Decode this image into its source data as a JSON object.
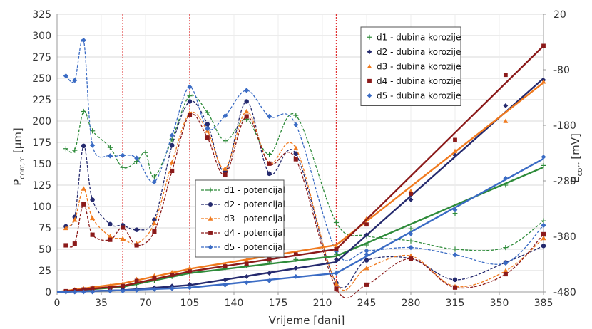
{
  "chart_data": {
    "type": "line",
    "xlabel": "Vrijeme [dani]",
    "ylabel_left": "P",
    "ylabel_left_sub": "corr,m",
    "ylabel_left_unit": "[µm]",
    "ylabel_right": "E",
    "ylabel_right_sub": "corr",
    "ylabel_right_unit": "[mV]",
    "x_ticks": [
      0,
      35,
      70,
      105,
      140,
      175,
      210,
      245,
      280,
      315,
      350,
      385
    ],
    "y_left_ticks": [
      0,
      25,
      50,
      75,
      100,
      125,
      150,
      175,
      200,
      225,
      250,
      275,
      300,
      325
    ],
    "y_right_ticks": [
      20,
      -80,
      -180,
      -280,
      -380,
      -480
    ],
    "xlim": [
      0,
      385
    ],
    "ylim_left": [
      0,
      325
    ],
    "ylim_right": [
      -480,
      20
    ],
    "vertical_markers": [
      52,
      105,
      221
    ],
    "legend_depth_position": "top-right",
    "legend_potential_position": "center",
    "depth_series": [
      {
        "name": "d1 - dubina korozije",
        "color": "#2e8b3a",
        "marker": "plus",
        "points": [
          [
            7,
            0
          ],
          [
            14,
            1
          ],
          [
            21,
            2
          ],
          [
            28,
            3
          ],
          [
            42,
            4
          ],
          [
            52,
            5
          ],
          [
            63,
            9
          ],
          [
            77,
            13
          ],
          [
            91,
            18
          ],
          [
            105,
            22
          ],
          [
            133,
            28
          ],
          [
            150,
            31
          ],
          [
            168,
            35
          ],
          [
            189,
            38
          ],
          [
            221,
            44
          ],
          [
            245,
            55
          ],
          [
            280,
            74
          ],
          [
            315,
            92
          ],
          [
            355,
            125
          ],
          [
            385,
            148
          ]
        ],
        "line": [
          [
            0,
            0
          ],
          [
            52,
            6
          ],
          [
            105,
            22
          ],
          [
            221,
            42
          ],
          [
            385,
            146
          ]
        ]
      },
      {
        "name": "d2 - dubina korozije",
        "color": "#252a6e",
        "marker": "diamond",
        "points": [
          [
            7,
            0
          ],
          [
            14,
            0
          ],
          [
            21,
            1
          ],
          [
            28,
            1
          ],
          [
            42,
            2
          ],
          [
            52,
            3
          ],
          [
            63,
            3
          ],
          [
            77,
            5
          ],
          [
            91,
            7
          ],
          [
            105,
            9
          ],
          [
            133,
            14
          ],
          [
            150,
            18
          ],
          [
            168,
            22
          ],
          [
            189,
            28
          ],
          [
            221,
            38
          ],
          [
            245,
            67
          ],
          [
            280,
            108
          ],
          [
            315,
            160
          ],
          [
            355,
            218
          ],
          [
            385,
            248
          ]
        ],
        "line": [
          [
            0,
            0
          ],
          [
            52,
            2
          ],
          [
            105,
            8
          ],
          [
            221,
            35
          ],
          [
            385,
            250
          ]
        ]
      },
      {
        "name": "d3 - dubina korozije",
        "color": "#f07a1e",
        "marker": "triangle",
        "points": [
          [
            7,
            1
          ],
          [
            14,
            3
          ],
          [
            21,
            4
          ],
          [
            28,
            5
          ],
          [
            42,
            7
          ],
          [
            52,
            9
          ],
          [
            63,
            15
          ],
          [
            77,
            19
          ],
          [
            91,
            23
          ],
          [
            105,
            28
          ],
          [
            133,
            32
          ],
          [
            150,
            37
          ],
          [
            168,
            40
          ],
          [
            189,
            45
          ],
          [
            221,
            54
          ],
          [
            245,
            86
          ],
          [
            280,
            118
          ],
          [
            315,
            165
          ],
          [
            355,
            200
          ],
          [
            385,
            246
          ]
        ],
        "line": [
          [
            0,
            0
          ],
          [
            52,
            10
          ],
          [
            105,
            27
          ],
          [
            221,
            55
          ],
          [
            385,
            245
          ]
        ]
      },
      {
        "name": "d4 - dubina korozije",
        "color": "#8b1a1a",
        "marker": "square",
        "points": [
          [
            7,
            1
          ],
          [
            14,
            2
          ],
          [
            21,
            3
          ],
          [
            28,
            4
          ],
          [
            42,
            5
          ],
          [
            52,
            7
          ],
          [
            63,
            13
          ],
          [
            77,
            16
          ],
          [
            91,
            20
          ],
          [
            105,
            24
          ],
          [
            133,
            30
          ],
          [
            150,
            33
          ],
          [
            168,
            38
          ],
          [
            189,
            44
          ],
          [
            221,
            50
          ],
          [
            245,
            79
          ],
          [
            280,
            115
          ],
          [
            315,
            178
          ],
          [
            355,
            254
          ],
          [
            385,
            288
          ]
        ],
        "line": [
          [
            0,
            0
          ],
          [
            52,
            7
          ],
          [
            105,
            24
          ],
          [
            221,
            50
          ],
          [
            385,
            288
          ]
        ]
      },
      {
        "name": "d5 - dubina korozije",
        "color": "#3a6bc4",
        "marker": "diamond",
        "points": [
          [
            7,
            0
          ],
          [
            14,
            0
          ],
          [
            21,
            0
          ],
          [
            28,
            0
          ],
          [
            42,
            1
          ],
          [
            52,
            1
          ],
          [
            63,
            2
          ],
          [
            77,
            3
          ],
          [
            91,
            4
          ],
          [
            105,
            5
          ],
          [
            133,
            8
          ],
          [
            150,
            11
          ],
          [
            168,
            13
          ],
          [
            189,
            18
          ],
          [
            221,
            22
          ],
          [
            245,
            44
          ],
          [
            280,
            68
          ],
          [
            315,
            96
          ],
          [
            355,
            133
          ],
          [
            385,
            158
          ]
        ],
        "line": [
          [
            0,
            0
          ],
          [
            52,
            2
          ],
          [
            105,
            5
          ],
          [
            221,
            22
          ],
          [
            385,
            156
          ]
        ]
      }
    ],
    "potential_series": [
      {
        "name": "d1 - potencijal",
        "color": "#2e8b3a",
        "marker": "plus",
        "points": [
          [
            7,
            -222
          ],
          [
            14,
            -225
          ],
          [
            21,
            -155
          ],
          [
            28,
            -190
          ],
          [
            42,
            -220
          ],
          [
            52,
            -256
          ],
          [
            63,
            -245
          ],
          [
            70,
            -229
          ],
          [
            77,
            -273
          ],
          [
            91,
            -205
          ],
          [
            105,
            -127
          ],
          [
            119,
            -157
          ],
          [
            133,
            -208
          ],
          [
            150,
            -169
          ],
          [
            168,
            -232
          ],
          [
            189,
            -162
          ],
          [
            221,
            -355
          ],
          [
            245,
            -379
          ],
          [
            280,
            -388
          ],
          [
            315,
            -403
          ],
          [
            355,
            -400
          ],
          [
            385,
            -352
          ]
        ]
      },
      {
        "name": "d2 - potencijal",
        "color": "#252a6e",
        "marker": "circle",
        "points": [
          [
            7,
            -362
          ],
          [
            14,
            -345
          ],
          [
            21,
            -217
          ],
          [
            28,
            -314
          ],
          [
            42,
            -358
          ],
          [
            52,
            -360
          ],
          [
            63,
            -368
          ],
          [
            77,
            -350
          ],
          [
            91,
            -216
          ],
          [
            105,
            -137
          ],
          [
            119,
            -178
          ],
          [
            133,
            -263
          ],
          [
            150,
            -137
          ],
          [
            168,
            -267
          ],
          [
            189,
            -231
          ],
          [
            221,
            -464
          ],
          [
            245,
            -423
          ],
          [
            280,
            -420
          ],
          [
            315,
            -458
          ],
          [
            355,
            -427
          ],
          [
            385,
            -397
          ]
        ]
      },
      {
        "name": "d3 - potencijal",
        "color": "#f07a1e",
        "marker": "triangle",
        "points": [
          [
            7,
            -365
          ],
          [
            14,
            -350
          ],
          [
            21,
            -294
          ],
          [
            28,
            -347
          ],
          [
            42,
            -380
          ],
          [
            52,
            -384
          ],
          [
            63,
            -393
          ],
          [
            77,
            -356
          ],
          [
            91,
            -247
          ],
          [
            105,
            -158
          ],
          [
            119,
            -190
          ],
          [
            133,
            -258
          ],
          [
            150,
            -155
          ],
          [
            168,
            -248
          ],
          [
            189,
            -221
          ],
          [
            221,
            -465
          ],
          [
            245,
            -437
          ],
          [
            280,
            -415
          ],
          [
            315,
            -470
          ],
          [
            355,
            -442
          ],
          [
            385,
            -383
          ]
        ]
      },
      {
        "name": "d4 - potencijal",
        "color": "#8b1a1a",
        "marker": "square",
        "points": [
          [
            7,
            -396
          ],
          [
            14,
            -393
          ],
          [
            21,
            -322
          ],
          [
            28,
            -377
          ],
          [
            42,
            -386
          ],
          [
            52,
            -364
          ],
          [
            63,
            -396
          ],
          [
            77,
            -371
          ],
          [
            91,
            -262
          ],
          [
            105,
            -161
          ],
          [
            119,
            -202
          ],
          [
            133,
            -269
          ],
          [
            150,
            -164
          ],
          [
            168,
            -249
          ],
          [
            189,
            -241
          ],
          [
            221,
            -474
          ],
          [
            245,
            -467
          ],
          [
            280,
            -420
          ],
          [
            315,
            -472
          ],
          [
            355,
            -448
          ],
          [
            385,
            -376
          ]
        ]
      },
      {
        "name": "d5 - potencijal",
        "color": "#3a6bc4",
        "marker": "diamond",
        "points": [
          [
            7,
            -91
          ],
          [
            14,
            -99
          ],
          [
            21,
            -27
          ],
          [
            28,
            -216
          ],
          [
            42,
            -235
          ],
          [
            52,
            -234
          ],
          [
            63,
            -239
          ],
          [
            77,
            -282
          ],
          [
            91,
            -198
          ],
          [
            105,
            -111
          ],
          [
            119,
            -186
          ],
          [
            133,
            -163
          ],
          [
            150,
            -117
          ],
          [
            168,
            -164
          ],
          [
            189,
            -179
          ],
          [
            221,
            -407
          ],
          [
            245,
            -406
          ],
          [
            280,
            -400
          ],
          [
            315,
            -413
          ],
          [
            355,
            -428
          ],
          [
            385,
            -360
          ]
        ]
      }
    ]
  }
}
